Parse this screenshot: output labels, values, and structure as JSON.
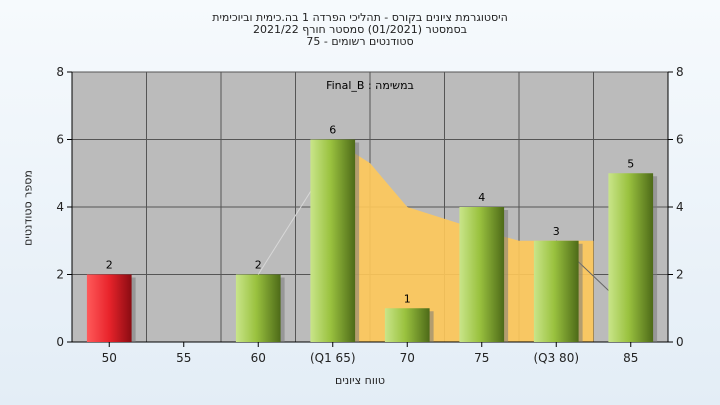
{
  "chart_data": {
    "type": "bar",
    "title_lines": [
      "היסטוגרמת ציונים בקורס - תהליכי הפרדה 1 בה.כימית וביוכימית",
      "בסמסטר  (01/2021)  סמסטר חורף 2021/22",
      "סטודנטים רשומים - 75"
    ],
    "annotation": "במשימה : Final_B",
    "xlabel": "טווח ציונים",
    "ylabel": "מספר סטודנטים",
    "categories": [
      "50",
      "55",
      "60",
      "(Q1 65)",
      "70",
      "75",
      "(Q3 80)",
      "85"
    ],
    "values": [
      2,
      0,
      2,
      6,
      1,
      4,
      3,
      5
    ],
    "data_labels": [
      "2",
      "",
      "2",
      "6",
      "1",
      "4",
      "3",
      "5"
    ],
    "bar_colors": [
      "red",
      null,
      "green",
      "green",
      "green",
      "green",
      "green",
      "green"
    ],
    "ylim": [
      0,
      8
    ],
    "yticks": [
      0,
      2,
      4,
      6,
      8
    ],
    "grid": true,
    "overlay_area": {
      "description_color": "#ffc95a",
      "points": [
        [
          3,
          6
        ],
        [
          3.5,
          5.3
        ],
        [
          4,
          4
        ],
        [
          5,
          3.3
        ],
        [
          5.5,
          3
        ],
        [
          6,
          3
        ],
        [
          6.5,
          3
        ]
      ]
    },
    "colors": {
      "plot_bg": "#bbbbbb",
      "grid": "#555555",
      "red_bar": "#e8232b",
      "green_bar": "#9ac23f",
      "area": "#ffc95a",
      "background": "#eaf1f8"
    }
  }
}
